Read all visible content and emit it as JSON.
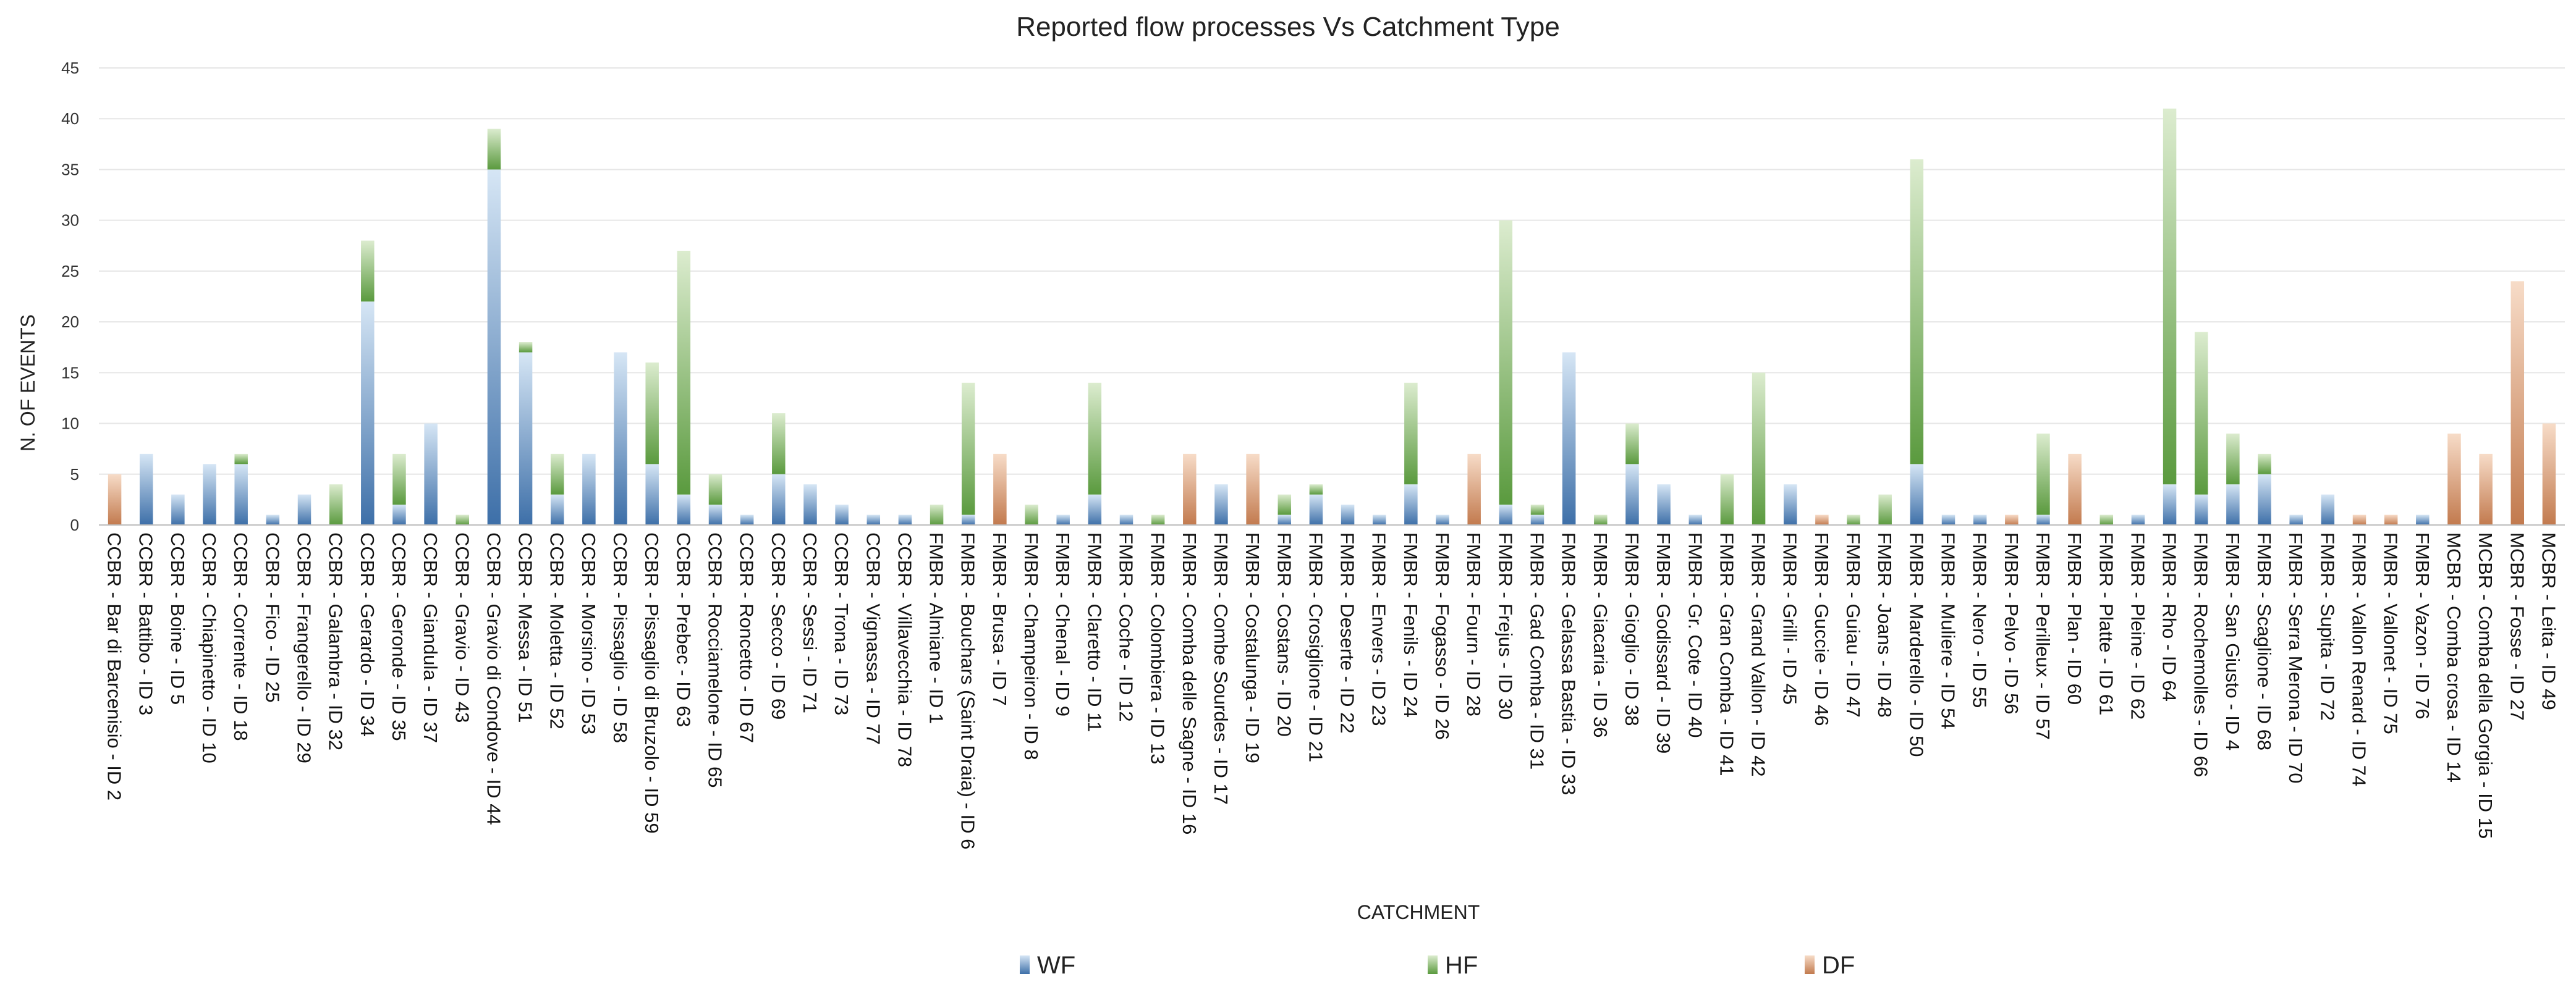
{
  "chart_data": {
    "type": "bar",
    "stacked": true,
    "title": "Reported flow processes Vs Catchment Type",
    "xlabel": "CATCHMENT",
    "ylabel": "N. OF EVENTS",
    "ylim": [
      0,
      45
    ],
    "yticks": [
      0,
      5,
      10,
      15,
      20,
      25,
      30,
      35,
      40,
      45
    ],
    "grid": true,
    "legend_position": "bottom",
    "categories": [
      "CCBR - Bar di Barcenisio - ID 2",
      "CCBR - Battibo - ID 3",
      "CCBR - Boine - ID 5",
      "CCBR - Chiapinetto - ID 10",
      "CCBR - Corrente - ID 18",
      "CCBR - Fico - ID 25",
      "CCBR - Frangerello - ID 29",
      "CCBR - Galambra - ID 32",
      "CCBR - Gerardo - ID 34",
      "CCBR - Geronde - ID 35",
      "CCBR - Giandula - ID 37",
      "CCBR - Gravio - ID 43",
      "CCBR - Gravio di Condove - ID 44",
      "CCBR - Messa - ID 51",
      "CCBR - Moletta - ID 52",
      "CCBR - Morsino - ID 53",
      "CCBR - Pissaglio - ID 58",
      "CCBR - Pissaglio di Bruzolo - ID 59",
      "CCBR - Prebec - ID 63",
      "CCBR - Rocciamelone - ID 65",
      "CCBR - Roncetto - ID 67",
      "CCBR - Secco - ID 69",
      "CCBR - Sessi - ID 71",
      "CCBR - Trona - ID 73",
      "CCBR - Vignassa - ID 77",
      "CCBR - Villavecchia - ID 78",
      "FMBR - Almiane - ID 1",
      "FMBR - Bouchars (Saint Draia) - ID 6",
      "FMBR - Brusa - ID 7",
      "FMBR - Champeiron - ID 8",
      "FMBR - Chenal - ID 9",
      "FMBR - Claretto - ID 11",
      "FMBR - Coche - ID 12",
      "FMBR - Colombiera - ID 13",
      "FMBR - Comba delle Sagne - ID 16",
      "FMBR - Combe Sourdes - ID 17",
      "FMBR - Costalunga - ID 19",
      "FMBR - Costans - ID 20",
      "FMBR - Crosiglione - ID 21",
      "FMBR - Deserte - ID 22",
      "FMBR - Envers - ID 23",
      "FMBR - Fenils - ID 24",
      "FMBR - Fogasso - ID 26",
      "FMBR - Fourn - ID 28",
      "FMBR - Frejus - ID 30",
      "FMBR - Gad Comba - ID 31",
      "FMBR - Gelassa Bastia - ID 33",
      "FMBR - Giacaria - ID 36",
      "FMBR - Gioglio - ID 38",
      "FMBR - Godissard - ID 39",
      "FMBR - Gr. Cote - ID 40",
      "FMBR - Gran Comba - ID 41",
      "FMBR - Grand Vallon - ID 42",
      "FMBR - Grilli - ID 45",
      "FMBR - Guccie - ID 46",
      "FMBR - Guiau - ID 47",
      "FMBR - Joans - ID 48",
      "FMBR - Marderello - ID 50",
      "FMBR - Muliere - ID 54",
      "FMBR - Nero - ID 55",
      "FMBR - Pelvo - ID 56",
      "FMBR - Perilleux - ID 57",
      "FMBR - Plan - ID 60",
      "FMBR - Platte - ID 61",
      "FMBR - Pleine - ID 62",
      "FMBR - Rho - ID 64",
      "FMBR - Rochemolles - ID 66",
      "FMBR - San Giusto - ID 4",
      "FMBR - Scaglione - ID 68",
      "FMBR - Serra Merona - ID 70",
      "FMBR - Supita - ID 72",
      "FMBR - Vallon Renard - ID 74",
      "FMBR - Vallonet - ID 75",
      "FMBR - Vazon - ID 76",
      "MCBR - Comba crosa - ID 14",
      "MCBR - Comba della Gorgia - ID 15",
      "MCBR - Fosse - ID 27",
      "MCBR - Leita - ID 49"
    ],
    "series": [
      {
        "name": "WF",
        "color": "#3d6fa8",
        "color_light": "#d6e6f5",
        "values": [
          0,
          7,
          3,
          6,
          6,
          1,
          3,
          0,
          22,
          2,
          10,
          0,
          35,
          17,
          3,
          7,
          17,
          6,
          3,
          2,
          1,
          5,
          4,
          2,
          1,
          1,
          0,
          1,
          0,
          0,
          1,
          3,
          1,
          0,
          0,
          4,
          0,
          1,
          3,
          2,
          1,
          4,
          1,
          0,
          2,
          1,
          17,
          0,
          6,
          4,
          1,
          0,
          0,
          4,
          0,
          0,
          0,
          6,
          1,
          1,
          0,
          1,
          0,
          0,
          1,
          4,
          3,
          4,
          5,
          1,
          3,
          0,
          0,
          1,
          0,
          0,
          0,
          0
        ]
      },
      {
        "name": "HF",
        "color": "#5a9a3e",
        "color_light": "#dceccf",
        "values": [
          0,
          0,
          0,
          0,
          1,
          0,
          0,
          4,
          6,
          5,
          0,
          1,
          4,
          1,
          4,
          0,
          0,
          10,
          24,
          3,
          0,
          6,
          0,
          0,
          0,
          0,
          2,
          13,
          0,
          2,
          0,
          11,
          0,
          1,
          0,
          0,
          0,
          2,
          1,
          0,
          0,
          10,
          0,
          0,
          28,
          1,
          0,
          1,
          4,
          0,
          0,
          5,
          15,
          0,
          0,
          1,
          3,
          30,
          0,
          0,
          0,
          8,
          0,
          1,
          0,
          37,
          16,
          5,
          2,
          0,
          0,
          0,
          0,
          0,
          0,
          0,
          0,
          0
        ]
      },
      {
        "name": "DF",
        "color": "#c27a4e",
        "color_light": "#f7dcc8",
        "values": [
          5,
          0,
          0,
          0,
          0,
          0,
          0,
          0,
          0,
          0,
          0,
          0,
          0,
          0,
          0,
          0,
          0,
          0,
          0,
          0,
          0,
          0,
          0,
          0,
          0,
          0,
          0,
          0,
          7,
          0,
          0,
          0,
          0,
          0,
          7,
          0,
          7,
          0,
          0,
          0,
          0,
          0,
          0,
          7,
          0,
          0,
          0,
          0,
          0,
          0,
          0,
          0,
          0,
          0,
          1,
          0,
          0,
          0,
          0,
          0,
          1,
          0,
          7,
          0,
          0,
          0,
          0,
          0,
          0,
          0,
          0,
          1,
          1,
          0,
          9,
          7,
          24,
          10
        ]
      }
    ]
  }
}
